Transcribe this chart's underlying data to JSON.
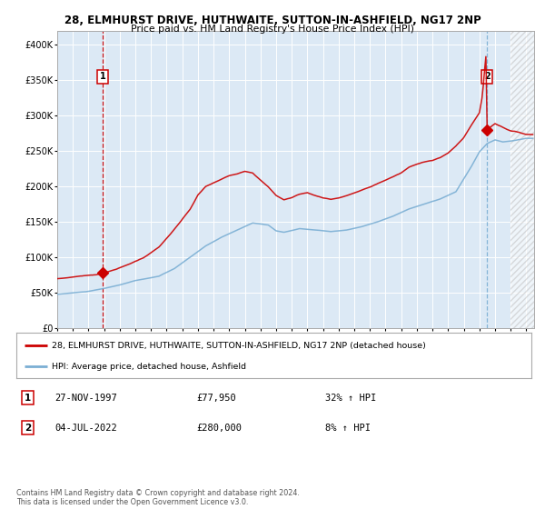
{
  "title1": "28, ELMHURST DRIVE, HUTHWAITE, SUTTON-IN-ASHFIELD, NG17 2NP",
  "title2": "Price paid vs. HM Land Registry's House Price Index (HPI)",
  "bg_color": "#dce9f5",
  "red_line_color": "#cc0000",
  "blue_line_color": "#7bafd4",
  "marker_color": "#cc0000",
  "vline_color_red": "#cc0000",
  "vline_color_blue": "#7bafd4",
  "ylim": [
    0,
    420000
  ],
  "yticks": [
    0,
    50000,
    100000,
    150000,
    200000,
    250000,
    300000,
    350000,
    400000
  ],
  "ytick_labels": [
    "£0",
    "£50K",
    "£100K",
    "£150K",
    "£200K",
    "£250K",
    "£300K",
    "£350K",
    "£400K"
  ],
  "legend_label_red": "28, ELMHURST DRIVE, HUTHWAITE, SUTTON-IN-ASHFIELD, NG17 2NP (detached house)",
  "legend_label_blue": "HPI: Average price, detached house, Ashfield",
  "sale1_date": "27-NOV-1997",
  "sale1_price": "£77,950",
  "sale1_hpi": "32% ↑ HPI",
  "sale1_year": 1997.9,
  "sale1_value": 77950,
  "sale2_date": "04-JUL-2022",
  "sale2_price": "£280,000",
  "sale2_hpi": "8% ↑ HPI",
  "sale2_year": 2022.5,
  "sale2_value": 280000,
  "footer": "Contains HM Land Registry data © Crown copyright and database right 2024.\nThis data is licensed under the Open Government Licence v3.0.",
  "x_start": 1995.0,
  "x_end": 2025.5,
  "xticks": [
    1995,
    1996,
    1997,
    1998,
    1999,
    2000,
    2001,
    2002,
    2003,
    2004,
    2005,
    2006,
    2007,
    2008,
    2009,
    2010,
    2011,
    2012,
    2013,
    2014,
    2015,
    2016,
    2017,
    2018,
    2019,
    2020,
    2021,
    2022,
    2023,
    2024,
    2025
  ]
}
